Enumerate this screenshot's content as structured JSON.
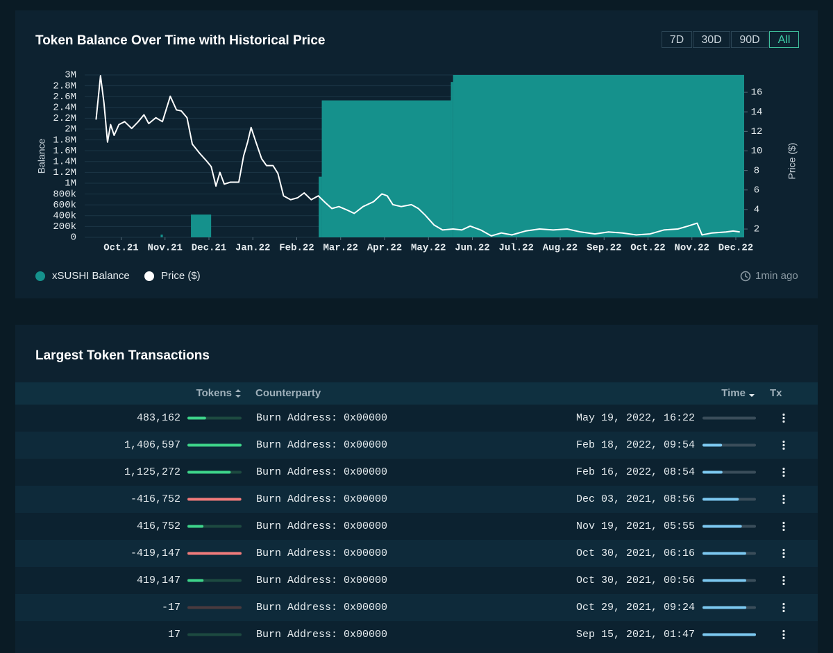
{
  "chart_panel": {
    "range_buttons": [
      "7D",
      "30D",
      "90D",
      "All"
    ],
    "selected_range": "All",
    "updated": "1min ago",
    "chart_data": {
      "type": "bar_line",
      "title": "Token Balance Over Time with Historical Price",
      "y_label": "Balance",
      "y2_label": "Price ($)",
      "xlim": [
        0.17,
        15.19
      ],
      "xticks": [
        {
          "value": 1,
          "label": "Oct.21"
        },
        {
          "value": 2,
          "label": "Nov.21"
        },
        {
          "value": 3,
          "label": "Dec.21"
        },
        {
          "value": 4,
          "label": "Jan.22"
        },
        {
          "value": 5,
          "label": "Feb.22"
        },
        {
          "value": 6,
          "label": "Mar.22"
        },
        {
          "value": 7,
          "label": "Apr.22"
        },
        {
          "value": 8,
          "label": "May.22"
        },
        {
          "value": 9,
          "label": "Jun.22"
        },
        {
          "value": 10,
          "label": "Jul.22"
        },
        {
          "value": 11,
          "label": "Aug.22"
        },
        {
          "value": 12,
          "label": "Sep.22"
        },
        {
          "value": 13,
          "label": "Oct.22"
        },
        {
          "value": 14,
          "label": "Nov.22"
        },
        {
          "value": 15,
          "label": "Dec.22"
        }
      ],
      "ylim": [
        0,
        3000000
      ],
      "yticks": [
        0,
        {
          "value": 200000,
          "label": "200k"
        },
        {
          "value": 400000,
          "label": "400k"
        },
        {
          "value": 600000,
          "label": "600k"
        },
        {
          "value": 800000,
          "label": "800k"
        },
        {
          "value": 1000000,
          "label": "1M"
        },
        {
          "value": 1200000,
          "label": "1.2M"
        },
        {
          "value": 1400000,
          "label": "1.4M"
        },
        {
          "value": 1600000,
          "label": "1.6M"
        },
        {
          "value": 1800000,
          "label": "1.8M"
        },
        {
          "value": 2000000,
          "label": "2M"
        },
        {
          "value": 2200000,
          "label": "2.2M"
        },
        {
          "value": 2400000,
          "label": "2.4M"
        },
        {
          "value": 2600000,
          "label": "2.6M"
        },
        {
          "value": 2800000,
          "label": "2.8M"
        },
        {
          "value": 3000000,
          "label": "3M"
        }
      ],
      "y2lim": [
        1.15,
        17.78
      ],
      "y2ticks": [
        2,
        4,
        6,
        8,
        10,
        12,
        14,
        16
      ],
      "grid": true,
      "series": [
        {
          "name": "xSUSHI Balance",
          "color": "#15918c",
          "x": [
            0.17,
            1.9,
            1.95,
            2.59,
            3.05,
            5.5,
            5.57,
            8.51,
            8.56
          ],
          "values": [
            0,
            50000,
            0,
            420000,
            0,
            1120000,
            2530000,
            2870000,
            3000000
          ]
        },
        {
          "name": "Price ($)",
          "color": "#ffffff",
          "axis": "y2",
          "x": [
            0.43,
            0.53,
            0.61,
            0.69,
            0.76,
            0.84,
            0.95,
            1.08,
            1.24,
            1.39,
            1.52,
            1.63,
            1.79,
            1.94,
            2.12,
            2.26,
            2.37,
            2.5,
            2.62,
            2.78,
            2.94,
            3.05,
            3.16,
            3.25,
            3.35,
            3.49,
            3.68,
            3.79,
            3.88,
            3.96,
            4.07,
            4.2,
            4.31,
            4.46,
            4.57,
            4.7,
            4.86,
            5.02,
            5.17,
            5.33,
            5.49,
            5.65,
            5.8,
            5.96,
            6.12,
            6.31,
            6.51,
            6.75,
            6.94,
            7.06,
            7.19,
            7.38,
            7.61,
            7.77,
            7.93,
            8.13,
            8.32,
            8.56,
            8.76,
            8.95,
            9.19,
            9.43,
            9.66,
            9.9,
            10.21,
            10.53,
            10.84,
            11.16,
            11.47,
            11.79,
            12.1,
            12.42,
            12.73,
            13.05,
            13.36,
            13.68,
            13.91,
            14.12,
            14.23,
            14.46,
            14.78,
            14.94,
            15.09
          ],
          "values": [
            13.2,
            17.7,
            14.9,
            10.9,
            12.7,
            11.6,
            12.7,
            13.0,
            12.3,
            13.0,
            13.7,
            12.8,
            13.4,
            13.0,
            15.6,
            14.2,
            14.1,
            13.4,
            10.7,
            9.8,
            9.0,
            8.4,
            6.4,
            7.8,
            6.6,
            6.8,
            6.8,
            9.5,
            10.9,
            12.4,
            10.9,
            9.2,
            8.5,
            8.5,
            7.7,
            5.4,
            5.0,
            5.2,
            5.7,
            5.0,
            5.4,
            4.7,
            4.1,
            4.3,
            4.0,
            3.6,
            4.3,
            4.8,
            5.6,
            5.4,
            4.5,
            4.3,
            4.5,
            4.1,
            3.4,
            2.4,
            1.9,
            2.0,
            1.9,
            2.3,
            1.9,
            1.3,
            1.6,
            1.4,
            1.8,
            2.0,
            1.9,
            2.0,
            1.7,
            1.5,
            1.7,
            1.6,
            1.4,
            1.5,
            1.9,
            2.0,
            2.3,
            2.6,
            1.4,
            1.6,
            1.7,
            1.8,
            1.7
          ]
        }
      ]
    }
  },
  "table": {
    "title": "Largest Token Transactions",
    "columns": [
      "Tokens",
      "Counterparty",
      "Time",
      "Tx"
    ],
    "rows": [
      [
        "483,162",
        "Burn Address: 0x00000",
        "May 19, 2022, 16:22"
      ],
      [
        "1,406,597",
        "Burn Address: 0x00000",
        "Feb 18, 2022, 09:54"
      ],
      [
        "1,125,272",
        "Burn Address: 0x00000",
        "Feb 16, 2022, 08:54"
      ],
      [
        "-416,752",
        "Burn Address: 0x00000",
        "Dec 03, 2021, 08:56"
      ],
      [
        "416,752",
        "Burn Address: 0x00000",
        "Nov 19, 2021, 05:55"
      ],
      [
        "-419,147",
        "Burn Address: 0x00000",
        "Oct 30, 2021, 06:16"
      ],
      [
        "419,147",
        "Burn Address: 0x00000",
        "Oct 30, 2021, 00:56"
      ],
      [
        "-17",
        "Burn Address: 0x00000",
        "Oct 29, 2021, 09:24"
      ],
      [
        "17",
        "Burn Address: 0x00000",
        "Sep 15, 2021, 01:47"
      ]
    ]
  }
}
